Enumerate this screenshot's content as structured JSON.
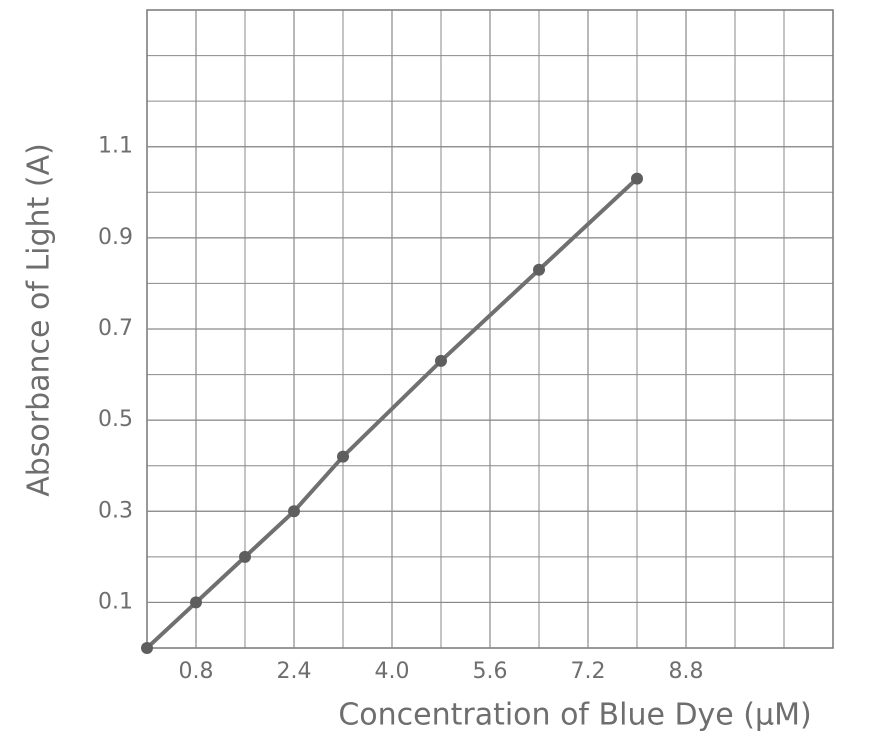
{
  "chart_data": {
    "type": "scatter",
    "x_label": "Concentration of Blue Dye (μM)",
    "y_label": "Absorbance of Light (A)",
    "series": [
      {
        "color": "#707070",
        "x": [
          0,
          0.8,
          1.6,
          2.4,
          3.2,
          4.8,
          6.4,
          8.0
        ],
        "values": [
          0,
          0.1,
          0.2,
          0.3,
          0.42,
          0.63,
          0.83,
          1.03
        ]
      }
    ],
    "xlim": [
      0,
      11.2
    ],
    "ylim": [
      0,
      1.4
    ],
    "xticks": [
      0.8,
      2.4,
      {
        "value": 4,
        "label": "4.0"
      },
      5.6,
      7.2,
      8.8
    ],
    "yticks": [
      0.1,
      0.3,
      0.5,
      0.7,
      0.9,
      1.1
    ],
    "grid": true
  }
}
